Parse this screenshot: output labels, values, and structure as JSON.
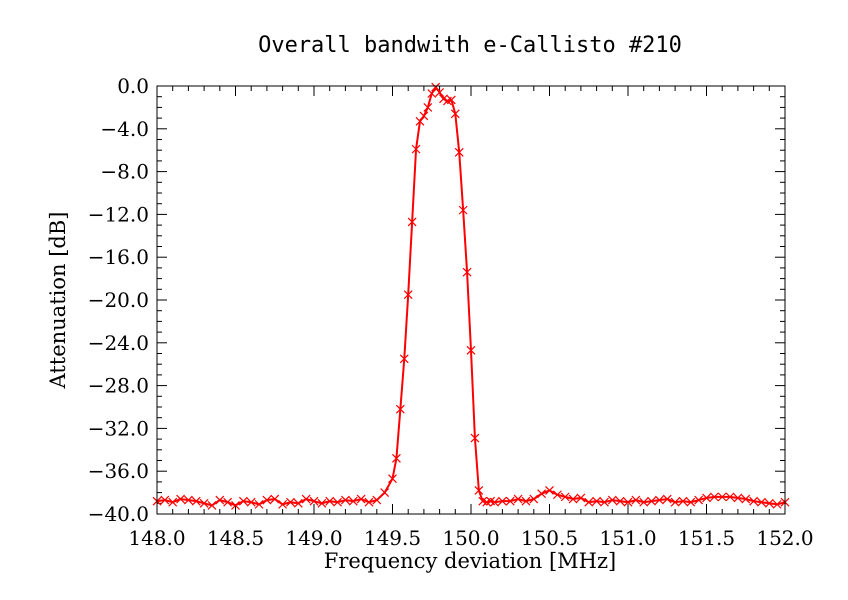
{
  "chart_data": {
    "type": "line",
    "title": "Overall bandwith e-Callisto #210",
    "xlabel": "Frequency deviation [MHz]",
    "ylabel": "Attenuation [dB]",
    "xlim": [
      148.0,
      152.0
    ],
    "ylim": [
      -40.0,
      0.0
    ],
    "x_ticks": [
      148.0,
      148.5,
      149.0,
      149.5,
      150.0,
      150.5,
      151.0,
      151.5,
      152.0
    ],
    "x_tick_labels": [
      "148.0",
      "148.5",
      "149.0",
      "149.5",
      "150.0",
      "150.5",
      "151.0",
      "151.5",
      "152.0"
    ],
    "y_ticks": [
      0,
      -4,
      -8,
      -12,
      -16,
      -20,
      -24,
      -28,
      -32,
      -36,
      -40
    ],
    "y_tick_labels": [
      "0.0",
      "−4.0",
      "−8.0",
      "−12.0",
      "−16.0",
      "−20.0",
      "−24.0",
      "−28.0",
      "−32.0",
      "−36.0",
      "−40.0"
    ],
    "grid": false,
    "line_color": "#ff0000",
    "marker": "x",
    "series": [
      {
        "x": [
          148.0,
          148.05,
          148.1,
          148.15,
          148.2,
          148.25,
          148.3,
          148.35,
          148.4,
          148.45,
          148.5,
          148.55,
          148.6,
          148.65,
          148.7,
          148.75,
          148.8,
          148.85,
          148.9,
          148.95,
          149.0,
          149.05,
          149.1,
          149.15,
          149.2,
          149.25,
          149.3,
          149.35,
          149.4,
          149.45,
          149.5,
          149.525,
          149.55,
          149.575,
          149.6,
          149.625,
          149.65,
          149.675,
          149.7,
          149.725,
          149.75,
          149.775,
          149.8,
          149.825,
          149.85,
          149.875,
          149.9,
          149.925,
          149.95,
          149.975,
          150.0,
          150.025,
          150.05,
          150.075,
          150.1,
          150.125,
          150.15,
          150.2,
          150.25,
          150.3,
          150.35,
          150.4,
          150.45,
          150.5,
          150.55,
          150.6,
          150.65,
          150.7,
          150.75,
          150.8,
          150.85,
          150.9,
          150.95,
          151.0,
          151.05,
          151.1,
          151.15,
          151.2,
          151.25,
          151.3,
          151.35,
          151.4,
          151.45,
          151.5,
          151.55,
          151.6,
          151.65,
          151.7,
          151.75,
          151.8,
          151.85,
          151.9,
          151.95,
          152.0
        ],
        "y": [
          -38.8,
          -38.7,
          -38.9,
          -38.6,
          -38.7,
          -38.8,
          -39.0,
          -39.2,
          -38.7,
          -38.9,
          -39.2,
          -38.8,
          -38.9,
          -39.1,
          -38.7,
          -38.6,
          -39.1,
          -38.9,
          -39.0,
          -38.6,
          -38.8,
          -39.0,
          -38.8,
          -38.9,
          -38.7,
          -38.8,
          -38.6,
          -38.9,
          -38.7,
          -38.0,
          -36.7,
          -34.8,
          -30.2,
          -25.5,
          -19.5,
          -12.7,
          -5.9,
          -3.3,
          -2.8,
          -2.0,
          -0.7,
          -0.1,
          -0.6,
          -1.2,
          -1.4,
          -1.3,
          -2.6,
          -6.2,
          -11.6,
          -17.4,
          -24.7,
          -32.9,
          -37.8,
          -38.8,
          -38.9,
          -38.8,
          -38.9,
          -38.8,
          -38.8,
          -38.6,
          -38.8,
          -38.6,
          -38.1,
          -37.8,
          -38.2,
          -38.4,
          -38.6,
          -38.5,
          -38.9,
          -38.8,
          -38.9,
          -38.7,
          -38.8,
          -38.9,
          -38.7,
          -38.9,
          -38.8,
          -38.7,
          -38.6,
          -38.9,
          -38.8,
          -38.9,
          -38.7,
          -38.5,
          -38.4,
          -38.4,
          -38.4,
          -38.5,
          -38.6,
          -38.8,
          -38.9,
          -39.0,
          -39.1,
          -38.9
        ]
      }
    ]
  }
}
